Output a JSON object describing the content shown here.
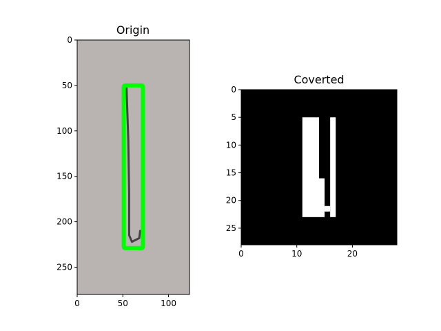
{
  "chart_data": [
    {
      "type": "image",
      "title": "Origin",
      "image_size": {
        "width": 123,
        "height": 280
      },
      "xlim": [
        0,
        123
      ],
      "ylim": [
        280,
        0
      ],
      "xticks": [
        0,
        50,
        100
      ],
      "yticks": [
        0,
        50,
        100,
        150,
        200,
        250
      ],
      "background_color": "#b9b3b2",
      "bounding_box": {
        "x0": 51,
        "y0": 50,
        "x1": 72,
        "y1": 229,
        "color": "#00ff00"
      },
      "stroke": {
        "color": "#2e2e2e",
        "path_data_units": [
          [
            54,
            52
          ],
          [
            56,
            110
          ],
          [
            57,
            170
          ],
          [
            57,
            215
          ],
          [
            60,
            222
          ],
          [
            68,
            218
          ],
          [
            69,
            210
          ]
        ]
      }
    },
    {
      "type": "image",
      "title": "Coverted",
      "image_size": {
        "width": 28,
        "height": 28
      },
      "xlim": [
        0,
        28
      ],
      "ylim": [
        28,
        0
      ],
      "xticks": [
        0,
        10,
        20
      ],
      "yticks": [
        0,
        5,
        10,
        15,
        20,
        25
      ],
      "background_color": "#000000",
      "foreground_color": "#ffffff",
      "white_pixel_rects": [
        {
          "col": 11,
          "row": 5,
          "w": 3,
          "h": 18
        },
        {
          "col": 14,
          "row": 16,
          "w": 1,
          "h": 7
        },
        {
          "col": 15,
          "row": 21,
          "w": 1,
          "h": 1
        },
        {
          "col": 16,
          "row": 5,
          "w": 1,
          "h": 18
        }
      ]
    }
  ]
}
